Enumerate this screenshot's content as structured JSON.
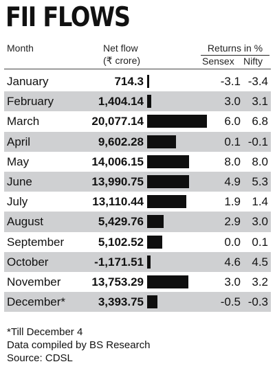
{
  "chart_data": {
    "type": "table",
    "title": "FII FLOWS",
    "columns": {
      "month": "Month",
      "net_flow": "Net flow",
      "net_flow_unit": "(₹ crore)",
      "returns": "Returns in %",
      "sensex": "Sensex",
      "nifty": "Nifty"
    },
    "rows": [
      {
        "month": "January",
        "net_flow": 714.3,
        "net_flow_label": "714.3",
        "sensex": "-3.1",
        "nifty": "-3.4"
      },
      {
        "month": "February",
        "net_flow": 1404.14,
        "net_flow_label": "1,404.14",
        "sensex": "3.0",
        "nifty": "3.1"
      },
      {
        "month": "March",
        "net_flow": 20077.14,
        "net_flow_label": "20,077.14",
        "sensex": "6.0",
        "nifty": "6.8"
      },
      {
        "month": "April",
        "net_flow": 9602.28,
        "net_flow_label": "9,602.28",
        "sensex": "0.1",
        "nifty": "-0.1"
      },
      {
        "month": "May",
        "net_flow": 14006.15,
        "net_flow_label": "14,006.15",
        "sensex": "8.0",
        "nifty": "8.0"
      },
      {
        "month": "June",
        "net_flow": 13990.75,
        "net_flow_label": "13,990.75",
        "sensex": "4.9",
        "nifty": "5.3"
      },
      {
        "month": "July",
        "net_flow": 13110.44,
        "net_flow_label": "13,110.44",
        "sensex": "1.9",
        "nifty": "1.4"
      },
      {
        "month": "August",
        "net_flow": 5429.76,
        "net_flow_label": "5,429.76",
        "sensex": "2.9",
        "nifty": "3.0"
      },
      {
        "month": "September",
        "net_flow": 5102.52,
        "net_flow_label": "5,102.52",
        "sensex": "0.0",
        "nifty": "0.1"
      },
      {
        "month": "October",
        "net_flow": -1171.51,
        "net_flow_label": "-1,171.51",
        "sensex": "4.6",
        "nifty": "4.5"
      },
      {
        "month": "November",
        "net_flow": 13753.29,
        "net_flow_label": "13,753.29",
        "sensex": "3.0",
        "nifty": "3.2"
      },
      {
        "month": "December*",
        "net_flow": 3393.75,
        "net_flow_label": "3,393.75",
        "sensex": "-0.5",
        "nifty": "-0.3"
      }
    ],
    "footnotes": [
      "*Till December 4",
      "Data compiled by BS Research",
      "Source: CDSL"
    ]
  },
  "colors": {
    "bar": "#0f0f0f",
    "row_shade": "#cfd0d2"
  }
}
